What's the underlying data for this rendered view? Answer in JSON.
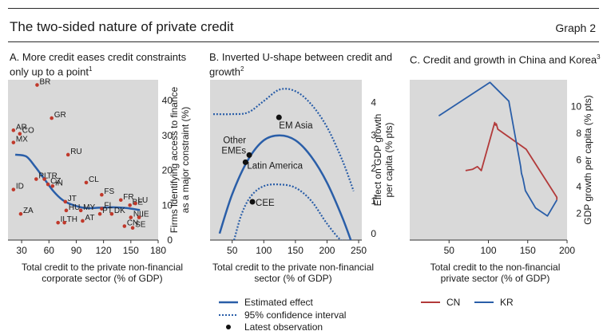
{
  "header": {
    "title": "The two-sided nature of private credit",
    "graph_label": "Graph 2"
  },
  "panels": {
    "a": {
      "title": "A. More credit eases credit constraints only up to a point",
      "footnote": "1",
      "xlabel": "Total credit to the private non-financial corporate sector (% of GDP)",
      "ylabel": "Firms identifying access to finance as a major constraint (%)"
    },
    "b": {
      "title": "B. Inverted U-shape between credit and growth",
      "footnote": "2",
      "xlabel": "Total credit to the private non-financial sector (% of GDP)",
      "ylabel": "Effect on GDP growth per capita (% pts)"
    },
    "c": {
      "title": "C. Credit and growth in China and Korea",
      "footnote": "3",
      "xlabel": "Total credit to the non-financial private sector (% of GDP)",
      "ylabel": "GDP growth per capita (% pts)"
    }
  },
  "legend_b": {
    "estimated": "Estimated effect",
    "ci": "95% confidence interval",
    "latest": "Latest observation"
  },
  "legend_c": {
    "cn": "CN",
    "kr": "KR"
  },
  "colors": {
    "panel_bg": "#d9d9d9",
    "blue": "#2a5ea8",
    "red": "#b23a3a",
    "dot": "#c0392b"
  },
  "chart_data": [
    {
      "type": "scatter",
      "xlim": [
        15,
        180
      ],
      "ylim": [
        0,
        46
      ],
      "xticks": [
        30,
        60,
        90,
        120,
        150,
        180
      ],
      "yticks": [
        0,
        10,
        20,
        30,
        40
      ],
      "grid": false,
      "points": [
        {
          "label": "BR",
          "x": 47,
          "y": 44.5
        },
        {
          "label": "AR",
          "x": 21,
          "y": 31.5
        },
        {
          "label": "CO",
          "x": 28,
          "y": 30.5
        },
        {
          "label": "MX",
          "x": 21,
          "y": 28
        },
        {
          "label": "GR",
          "x": 63,
          "y": 35
        },
        {
          "label": "RU",
          "x": 81,
          "y": 24.5
        },
        {
          "label": "ID",
          "x": 21,
          "y": 14.5
        },
        {
          "label": "PL",
          "x": 46,
          "y": 17.5
        },
        {
          "label": "TR",
          "x": 55,
          "y": 17.5
        },
        {
          "label": "CZ",
          "x": 59,
          "y": 16
        },
        {
          "label": "IN",
          "x": 64,
          "y": 15.5
        },
        {
          "label": "ZA",
          "x": 29,
          "y": 7.5
        },
        {
          "label": "CL",
          "x": 101,
          "y": 16.5
        },
        {
          "label": "FS",
          "x": 118,
          "y": 13
        },
        {
          "label": "JT",
          "x": 78,
          "y": 11
        },
        {
          "label": "HU",
          "x": 79,
          "y": 8.5
        },
        {
          "label": "MY",
          "x": 95,
          "y": 8.5
        },
        {
          "label": "FI",
          "x": 118,
          "y": 9
        },
        {
          "label": "FR",
          "x": 139,
          "y": 11.5
        },
        {
          "label": "BE",
          "x": 149,
          "y": 10
        },
        {
          "label": "LU",
          "x": 155,
          "y": 10.5
        },
        {
          "label": "DK",
          "x": 129,
          "y": 7.5
        },
        {
          "label": "PT",
          "x": 116,
          "y": 7.5
        },
        {
          "label": "IL",
          "x": 70,
          "y": 5
        },
        {
          "label": "TH",
          "x": 77,
          "y": 5
        },
        {
          "label": "AT",
          "x": 97,
          "y": 5.5
        },
        {
          "label": "NL",
          "x": 150,
          "y": 6.5
        },
        {
          "label": "IE",
          "x": 159,
          "y": 6.5
        },
        {
          "label": "CN",
          "x": 143,
          "y": 4
        },
        {
          "label": "SE",
          "x": 152,
          "y": 3.5
        }
      ],
      "fit_curve": {
        "x": [
          23,
          35,
          45,
          55,
          65,
          75,
          85,
          100,
          115,
          130,
          145,
          160
        ],
        "y": [
          24.5,
          24,
          21,
          17.5,
          14,
          11.5,
          10.2,
          9.2,
          9.3,
          9.4,
          9.2,
          8.6
        ]
      }
    },
    {
      "type": "line",
      "xlim": [
        15,
        255
      ],
      "ylim": [
        -0.2,
        4.7
      ],
      "xticks": [
        50,
        100,
        150,
        200,
        250
      ],
      "yticks": [
        0,
        1,
        2,
        3,
        4
      ],
      "grid": false,
      "series": [
        {
          "name": "Estimated effect",
          "style": "solid",
          "x": [
            30,
            50,
            75,
            100,
            125,
            150,
            175,
            200,
            225,
            245
          ],
          "y": [
            0.0,
            1.2,
            2.25,
            2.85,
            3.0,
            2.85,
            2.35,
            1.55,
            0.45,
            -0.6
          ]
        },
        {
          "name": "95% confidence interval",
          "style": "dotted",
          "x": [
            20,
            50,
            75,
            100,
            125,
            150,
            175,
            200,
            225,
            242
          ],
          "y": [
            3.65,
            3.65,
            3.7,
            4.05,
            4.4,
            4.35,
            3.95,
            3.25,
            2.2,
            1.3
          ]
        },
        {
          "name": "95% confidence interval",
          "style": "dotted",
          "x": [
            53,
            65,
            80,
            100,
            125,
            150,
            175,
            200,
            222,
            235
          ],
          "y": [
            -0.2,
            0.6,
            1.15,
            1.45,
            1.5,
            1.4,
            1.0,
            0.3,
            -0.2,
            -0.2
          ]
        }
      ],
      "points": [
        {
          "label": "EM Asia",
          "x": 124,
          "y": 3.55
        },
        {
          "label": "Other EMEs",
          "x": 77,
          "y": 2.4
        },
        {
          "label": "Latin America",
          "x": 71,
          "y": 2.18
        },
        {
          "label": "CEE",
          "x": 82,
          "y": 0.97
        }
      ]
    },
    {
      "type": "line",
      "xlim": [
        0,
        200
      ],
      "ylim": [
        0,
        12
      ],
      "xticks": [
        50,
        100,
        150,
        200
      ],
      "yticks": [
        2,
        4,
        6,
        8,
        10
      ],
      "grid": false,
      "series": [
        {
          "name": "CN",
          "x": [
            71,
            80,
            86,
            91,
            108,
            109,
            110,
            112,
            148,
            187,
            187
          ],
          "y": [
            5.2,
            5.3,
            5.5,
            5.2,
            8.8,
            8.6,
            8.7,
            8.3,
            6.8,
            3.2,
            3.0
          ]
        },
        {
          "name": "KR",
          "x": [
            37,
            102,
            126,
            141,
            142,
            144,
            147,
            160,
            175,
            187
          ],
          "y": [
            9.3,
            11.8,
            10.4,
            5.5,
            5.0,
            4.6,
            3.7,
            2.4,
            1.8,
            3.0
          ]
        }
      ]
    }
  ]
}
